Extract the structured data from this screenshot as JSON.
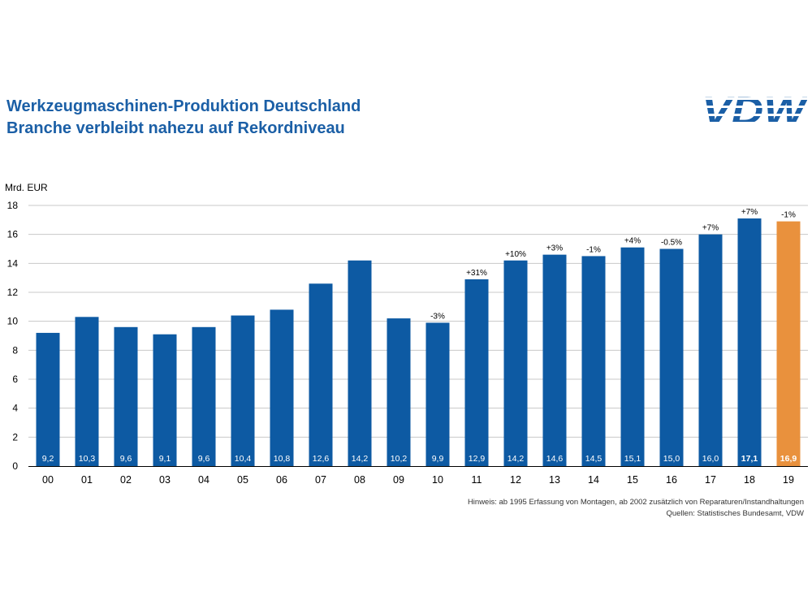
{
  "header": {
    "title": "Werkzeugmaschinen-Produktion Deutschland",
    "subtitle": "Branche verbleibt nahezu auf Rekordniveau",
    "logo_text": "VDW"
  },
  "notes": {
    "hint": "Hinweis: ab 1995 Erfassung von Montagen, ab 2002 zusätzlich von Reparaturen/Instandhaltungen",
    "source": "Quellen: Statistisches Bundesamt, VDW"
  },
  "colors": {
    "bar": "#0d5aa3",
    "highlight": "#e9913d",
    "title": "#1b5fa6"
  },
  "chart_data": {
    "type": "bar",
    "ylabel": "Mrd. EUR",
    "ylim": [
      0,
      18
    ],
    "yticks": [
      0,
      2,
      4,
      6,
      8,
      10,
      12,
      14,
      16,
      18
    ],
    "grid": true,
    "categories": [
      "00",
      "01",
      "02",
      "03",
      "04",
      "05",
      "06",
      "07",
      "08",
      "09",
      "10",
      "11",
      "12",
      "13",
      "14",
      "15",
      "16",
      "17",
      "18",
      "19"
    ],
    "values": [
      9.2,
      10.3,
      9.6,
      9.1,
      9.6,
      10.4,
      10.8,
      12.6,
      14.2,
      10.2,
      9.9,
      12.9,
      14.2,
      14.6,
      14.5,
      15.1,
      15.0,
      16.0,
      17.1,
      16.9
    ],
    "value_labels": [
      "9,2",
      "10,3",
      "9,6",
      "9,1",
      "9,6",
      "10,4",
      "10,8",
      "12,6",
      "14,2",
      "10,2",
      "9,9",
      "12,9",
      "14,2",
      "14,6",
      "14,5",
      "15,1",
      "15,0",
      "16,0",
      "17,1",
      "16,9"
    ],
    "change_labels": [
      "",
      "",
      "",
      "",
      "",
      "",
      "",
      "",
      "",
      "",
      "-3%",
      "+31%",
      "+10%",
      "+3%",
      "-1%",
      "+4%",
      "-0.5%",
      "+7%",
      "+7%",
      "-1%"
    ],
    "bold_value_labels": [
      "18",
      "19"
    ],
    "highlight_category": "19"
  }
}
